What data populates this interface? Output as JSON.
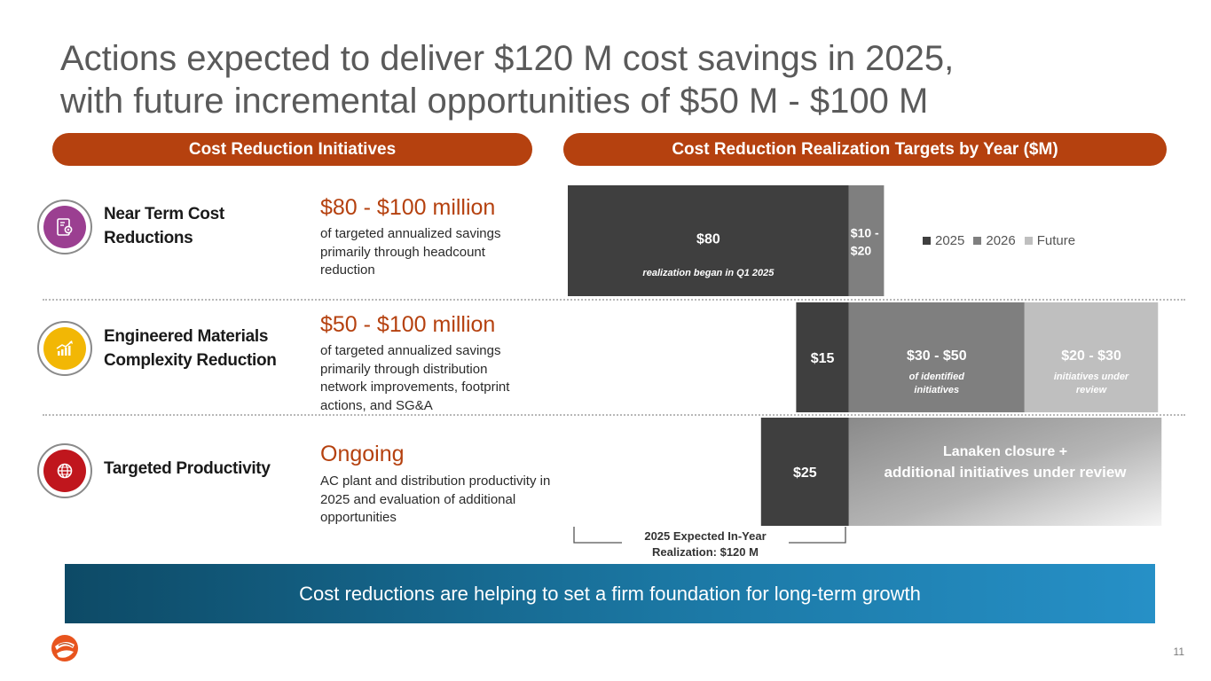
{
  "title": {
    "line1": "Actions expected to deliver $120 M cost savings in 2025,",
    "line2": "with future incremental opportunities of $50 M - $100 M"
  },
  "headers": {
    "left": "Cost Reduction Initiatives",
    "right": "Cost Reduction Realization Targets by Year ($M)"
  },
  "initiatives": [
    {
      "label_line1": "Near Term Cost",
      "label_line2": "Reductions",
      "headline": "$80 - $100 million",
      "description": "of targeted annualized savings primarily through headcount reduction",
      "icon": "document-gear-icon",
      "icon_color": "#9b3f91"
    },
    {
      "label_line1": "Engineered Materials",
      "label_line2": "Complexity Reduction",
      "headline": "$50 - $100 million",
      "description": "of targeted annualized savings primarily through distribution network improvements, footprint actions, and SG&A",
      "icon": "growth-chart-icon",
      "icon_color": "#f2b705"
    },
    {
      "label_line1": "Targeted Productivity",
      "label_line2": "",
      "headline": "Ongoing",
      "description": "AC plant and distribution productivity in 2025 and evaluation of additional opportunities",
      "icon": "globe-badge-icon",
      "icon_color": "#c0161d"
    }
  ],
  "chart_data": {
    "type": "bar",
    "orientation": "horizontal",
    "stacked": true,
    "categories": [
      "Near Term Cost Reductions",
      "Engineered Materials Complexity Reduction",
      "Targeted Productivity"
    ],
    "legend": [
      "2025",
      "2026",
      "Future"
    ],
    "legend_placement": "top-right",
    "colors": {
      "2025": "#3f3f3f",
      "2026": "#7f7f7f",
      "Future": "#bfbfbf"
    },
    "series": [
      {
        "name": "2025",
        "values": [
          80,
          15,
          25
        ],
        "labels": [
          "$80",
          "$15",
          "$25"
        ],
        "sublabels": [
          "realization began in Q1 2025",
          "",
          ""
        ]
      },
      {
        "name": "2026",
        "values_range": [
          [
            10,
            20
          ],
          [
            30,
            50
          ],
          null
        ],
        "labels": [
          "$10 - $20",
          "$30 - $50",
          "Lanaken closure + additional initiatives under review"
        ],
        "sublabels": [
          "",
          "of identified initiatives",
          ""
        ]
      },
      {
        "name": "Future",
        "values_range": [
          null,
          [
            20,
            30
          ],
          null
        ],
        "labels": [
          "",
          "$20 - $30",
          ""
        ],
        "sublabels": [
          "",
          "initiatives under review",
          ""
        ]
      }
    ],
    "segments": [
      {
        "row": 0,
        "series": "2025",
        "label": "$80",
        "sub": "realization began in Q1 2025",
        "start": 0,
        "end": 80,
        "fill": "#3f3f3f"
      },
      {
        "row": 0,
        "series": "2026",
        "label": "$10 - $20",
        "sub": "",
        "start": 80,
        "end": 90,
        "fill": "#7f7f7f"
      },
      {
        "row": 1,
        "series": "2025",
        "label": "$15",
        "sub": "",
        "start": 65,
        "end": 80,
        "fill": "#3f3f3f"
      },
      {
        "row": 1,
        "series": "2026",
        "label": "$30 - $50",
        "sub": "of identified initiatives",
        "start": 80,
        "end": 130,
        "fill": "#7f7f7f"
      },
      {
        "row": 1,
        "series": "Future",
        "label": "$20 - $30",
        "sub": "initiatives under review",
        "start": 130,
        "end": 168,
        "fill": "#bfbfbf"
      },
      {
        "row": 2,
        "series": "2025",
        "label": "$25",
        "sub": "",
        "start": 55,
        "end": 80,
        "fill": "#3f3f3f"
      },
      {
        "row": 2,
        "series": "2026",
        "label": "Lanaken closure + additional initiatives under review",
        "sub": "",
        "start": 80,
        "end": 169,
        "fill": "gradient"
      }
    ],
    "xlim": [
      0,
      170
    ],
    "annotation": "2025 Expected In-Year Realization: $120 M"
  },
  "bracket": {
    "line1": "2025 Expected In-Year",
    "line2": "Realization: $120 M"
  },
  "banner": "Cost reductions are helping to set a firm foundation for long-term growth",
  "page_number": "11",
  "brand_color": "#b5410f",
  "banner_color": "#1b77a3"
}
